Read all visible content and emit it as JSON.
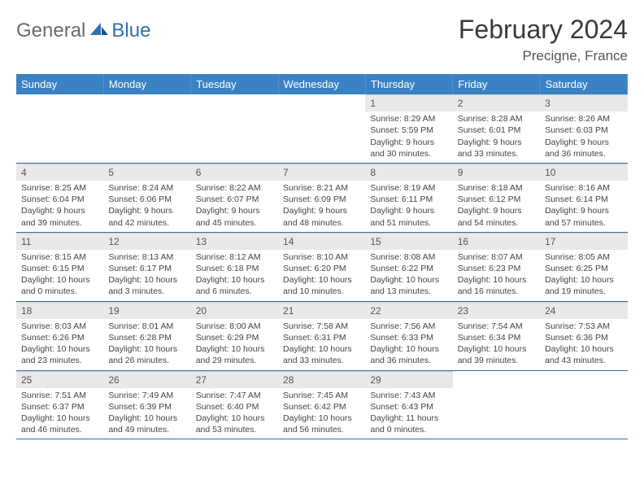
{
  "brand": {
    "part1": "General",
    "part2": "Blue"
  },
  "title": "February 2024",
  "location": "Precigne, France",
  "colors": {
    "header_bg": "#3b82c4",
    "header_text": "#ffffff",
    "daynum_bg": "#e9e9e9",
    "row_divider": "#3b6fa0",
    "brand_gray": "#6a6a6a",
    "brand_blue": "#2f6fb0"
  },
  "weekdays": [
    "Sunday",
    "Monday",
    "Tuesday",
    "Wednesday",
    "Thursday",
    "Friday",
    "Saturday"
  ],
  "weeks": [
    [
      null,
      null,
      null,
      null,
      {
        "n": "1",
        "sr": "Sunrise: 8:29 AM",
        "ss": "Sunset: 5:59 PM",
        "d1": "Daylight: 9 hours",
        "d2": "and 30 minutes."
      },
      {
        "n": "2",
        "sr": "Sunrise: 8:28 AM",
        "ss": "Sunset: 6:01 PM",
        "d1": "Daylight: 9 hours",
        "d2": "and 33 minutes."
      },
      {
        "n": "3",
        "sr": "Sunrise: 8:26 AM",
        "ss": "Sunset: 6:03 PM",
        "d1": "Daylight: 9 hours",
        "d2": "and 36 minutes."
      }
    ],
    [
      {
        "n": "4",
        "sr": "Sunrise: 8:25 AM",
        "ss": "Sunset: 6:04 PM",
        "d1": "Daylight: 9 hours",
        "d2": "and 39 minutes."
      },
      {
        "n": "5",
        "sr": "Sunrise: 8:24 AM",
        "ss": "Sunset: 6:06 PM",
        "d1": "Daylight: 9 hours",
        "d2": "and 42 minutes."
      },
      {
        "n": "6",
        "sr": "Sunrise: 8:22 AM",
        "ss": "Sunset: 6:07 PM",
        "d1": "Daylight: 9 hours",
        "d2": "and 45 minutes."
      },
      {
        "n": "7",
        "sr": "Sunrise: 8:21 AM",
        "ss": "Sunset: 6:09 PM",
        "d1": "Daylight: 9 hours",
        "d2": "and 48 minutes."
      },
      {
        "n": "8",
        "sr": "Sunrise: 8:19 AM",
        "ss": "Sunset: 6:11 PM",
        "d1": "Daylight: 9 hours",
        "d2": "and 51 minutes."
      },
      {
        "n": "9",
        "sr": "Sunrise: 8:18 AM",
        "ss": "Sunset: 6:12 PM",
        "d1": "Daylight: 9 hours",
        "d2": "and 54 minutes."
      },
      {
        "n": "10",
        "sr": "Sunrise: 8:16 AM",
        "ss": "Sunset: 6:14 PM",
        "d1": "Daylight: 9 hours",
        "d2": "and 57 minutes."
      }
    ],
    [
      {
        "n": "11",
        "sr": "Sunrise: 8:15 AM",
        "ss": "Sunset: 6:15 PM",
        "d1": "Daylight: 10 hours",
        "d2": "and 0 minutes."
      },
      {
        "n": "12",
        "sr": "Sunrise: 8:13 AM",
        "ss": "Sunset: 6:17 PM",
        "d1": "Daylight: 10 hours",
        "d2": "and 3 minutes."
      },
      {
        "n": "13",
        "sr": "Sunrise: 8:12 AM",
        "ss": "Sunset: 6:18 PM",
        "d1": "Daylight: 10 hours",
        "d2": "and 6 minutes."
      },
      {
        "n": "14",
        "sr": "Sunrise: 8:10 AM",
        "ss": "Sunset: 6:20 PM",
        "d1": "Daylight: 10 hours",
        "d2": "and 10 minutes."
      },
      {
        "n": "15",
        "sr": "Sunrise: 8:08 AM",
        "ss": "Sunset: 6:22 PM",
        "d1": "Daylight: 10 hours",
        "d2": "and 13 minutes."
      },
      {
        "n": "16",
        "sr": "Sunrise: 8:07 AM",
        "ss": "Sunset: 6:23 PM",
        "d1": "Daylight: 10 hours",
        "d2": "and 16 minutes."
      },
      {
        "n": "17",
        "sr": "Sunrise: 8:05 AM",
        "ss": "Sunset: 6:25 PM",
        "d1": "Daylight: 10 hours",
        "d2": "and 19 minutes."
      }
    ],
    [
      {
        "n": "18",
        "sr": "Sunrise: 8:03 AM",
        "ss": "Sunset: 6:26 PM",
        "d1": "Daylight: 10 hours",
        "d2": "and 23 minutes."
      },
      {
        "n": "19",
        "sr": "Sunrise: 8:01 AM",
        "ss": "Sunset: 6:28 PM",
        "d1": "Daylight: 10 hours",
        "d2": "and 26 minutes."
      },
      {
        "n": "20",
        "sr": "Sunrise: 8:00 AM",
        "ss": "Sunset: 6:29 PM",
        "d1": "Daylight: 10 hours",
        "d2": "and 29 minutes."
      },
      {
        "n": "21",
        "sr": "Sunrise: 7:58 AM",
        "ss": "Sunset: 6:31 PM",
        "d1": "Daylight: 10 hours",
        "d2": "and 33 minutes."
      },
      {
        "n": "22",
        "sr": "Sunrise: 7:56 AM",
        "ss": "Sunset: 6:33 PM",
        "d1": "Daylight: 10 hours",
        "d2": "and 36 minutes."
      },
      {
        "n": "23",
        "sr": "Sunrise: 7:54 AM",
        "ss": "Sunset: 6:34 PM",
        "d1": "Daylight: 10 hours",
        "d2": "and 39 minutes."
      },
      {
        "n": "24",
        "sr": "Sunrise: 7:53 AM",
        "ss": "Sunset: 6:36 PM",
        "d1": "Daylight: 10 hours",
        "d2": "and 43 minutes."
      }
    ],
    [
      {
        "n": "25",
        "sr": "Sunrise: 7:51 AM",
        "ss": "Sunset: 6:37 PM",
        "d1": "Daylight: 10 hours",
        "d2": "and 46 minutes."
      },
      {
        "n": "26",
        "sr": "Sunrise: 7:49 AM",
        "ss": "Sunset: 6:39 PM",
        "d1": "Daylight: 10 hours",
        "d2": "and 49 minutes."
      },
      {
        "n": "27",
        "sr": "Sunrise: 7:47 AM",
        "ss": "Sunset: 6:40 PM",
        "d1": "Daylight: 10 hours",
        "d2": "and 53 minutes."
      },
      {
        "n": "28",
        "sr": "Sunrise: 7:45 AM",
        "ss": "Sunset: 6:42 PM",
        "d1": "Daylight: 10 hours",
        "d2": "and 56 minutes."
      },
      {
        "n": "29",
        "sr": "Sunrise: 7:43 AM",
        "ss": "Sunset: 6:43 PM",
        "d1": "Daylight: 11 hours",
        "d2": "and 0 minutes."
      },
      null,
      null
    ]
  ]
}
